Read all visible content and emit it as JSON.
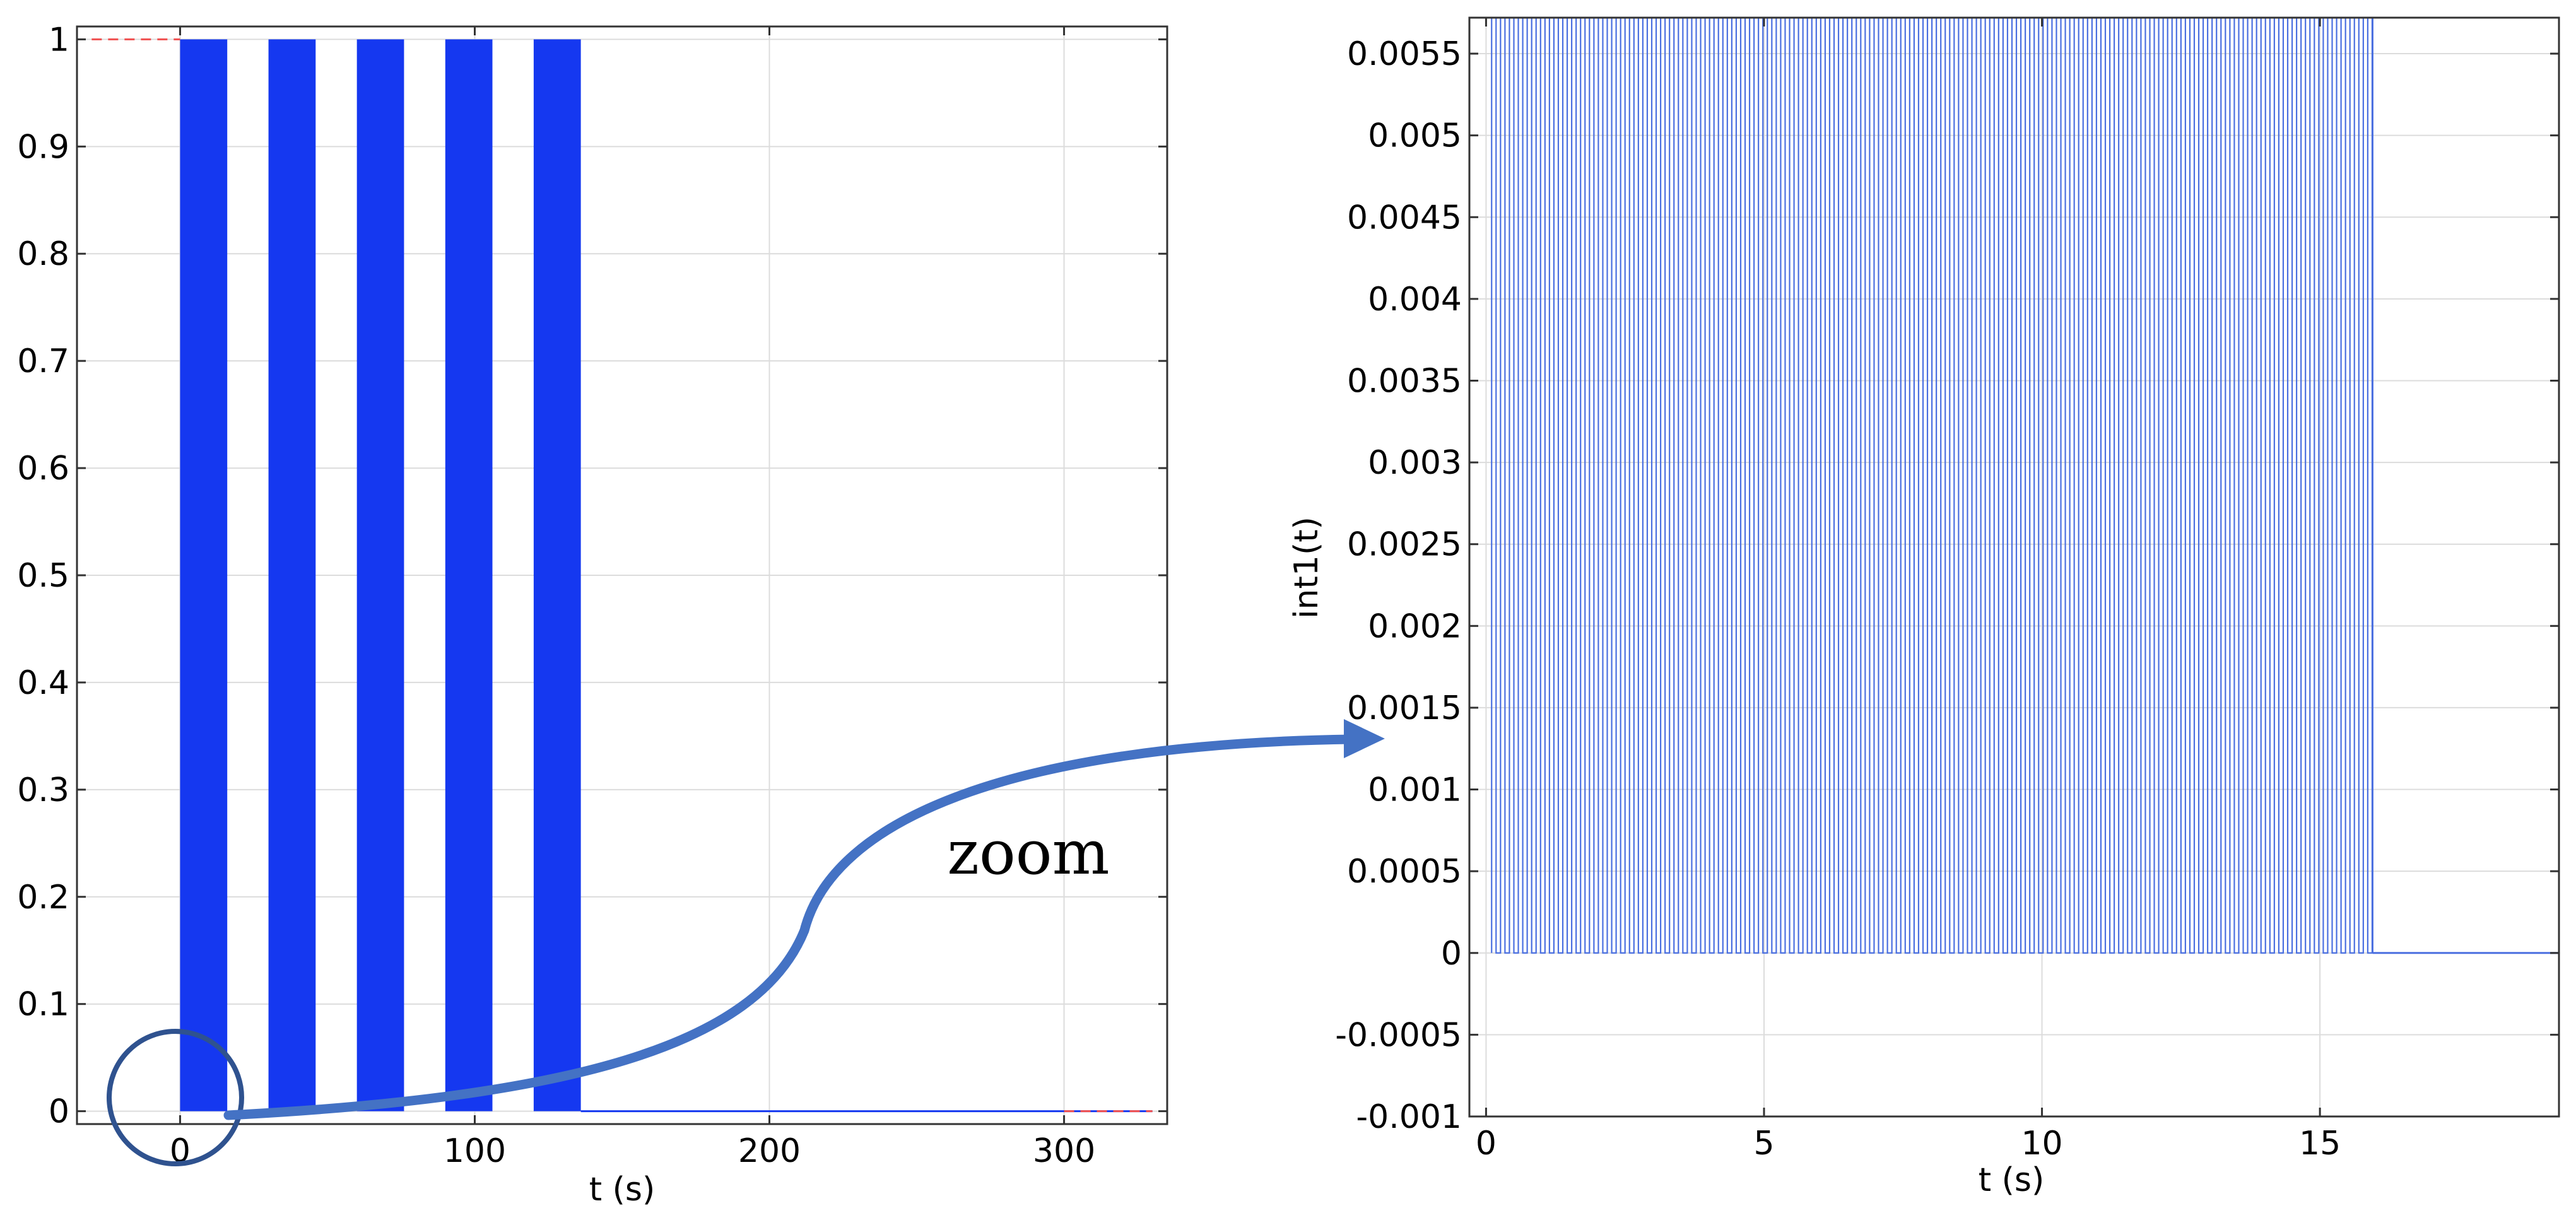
{
  "chart_data": [
    {
      "type": "line",
      "xlabel": "t (s)",
      "ylabel": "",
      "xlim": [
        -35,
        335
      ],
      "ylim": [
        -0.012,
        1.012
      ],
      "xticks": [
        0,
        100,
        200,
        300
      ],
      "xtick_labels": [
        "0",
        "100",
        "200",
        "300"
      ],
      "yticks": [
        0,
        0.1,
        0.2,
        0.3,
        0.4,
        0.5,
        0.6,
        0.7,
        0.8,
        0.9,
        1
      ],
      "ytick_labels": [
        "0",
        "0.1",
        "0.2",
        "0.3",
        "0.4",
        "0.5",
        "0.6",
        "0.7",
        "0.8",
        "0.9",
        "1"
      ],
      "grid": true,
      "series_color": "#1538f0",
      "reference_line_color": "#f05050",
      "pulse_blocks": [
        {
          "t_start": 0,
          "t_end": 16,
          "value": 1
        },
        {
          "t_start": 30,
          "t_end": 46,
          "value": 1
        },
        {
          "t_start": 60,
          "t_end": 76,
          "value": 1
        },
        {
          "t_start": 90,
          "t_end": 106,
          "value": 1
        },
        {
          "t_start": 120,
          "t_end": 136,
          "value": 1
        }
      ],
      "baseline": {
        "t_start": 136,
        "t_end": 330,
        "value": 0
      },
      "dashed_references": [
        {
          "t_start": -30,
          "t_end": 0,
          "value": 1
        },
        {
          "t_start": 300,
          "t_end": 330,
          "value": 0
        }
      ]
    },
    {
      "type": "line",
      "xlabel": "t (s)",
      "ylabel": "int1(t)",
      "xlim": [
        -0.3,
        19.3
      ],
      "ylim": [
        -0.001,
        0.00572
      ],
      "xticks": [
        0,
        5,
        10,
        15
      ],
      "xtick_labels": [
        "0",
        "5",
        "10",
        "15"
      ],
      "yticks": [
        -0.001,
        -0.0005,
        0,
        0.0005,
        0.001,
        0.0015,
        0.002,
        0.0025,
        0.003,
        0.0035,
        0.004,
        0.0045,
        0.005,
        0.0055
      ],
      "ytick_labels": [
        "-0.001",
        "-0.0005",
        "0",
        "0.0005",
        "0.001",
        "0.0015",
        "0.002",
        "0.0025",
        "0.003",
        "0.0035",
        "0.004",
        "0.0045",
        "0.005",
        "0.0055"
      ],
      "grid": true,
      "series_color": "#4a6fe0",
      "square_wave": {
        "t_start": 0.1,
        "t_end": 15.95,
        "period": 0.16,
        "duty_cycle": 0.5,
        "high": 0.00572,
        "low": 0
      },
      "tail": {
        "t_start": 15.95,
        "t_end": 19.3,
        "value": 0
      }
    }
  ],
  "annotation": {
    "text": "zoom",
    "arrow_color": "#4472c4",
    "circle_color": "#2f528f"
  }
}
